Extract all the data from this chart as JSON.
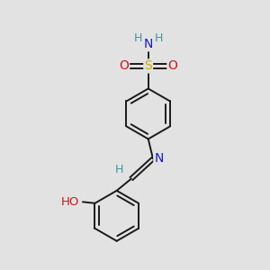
{
  "bg_color": "#e2e2e2",
  "bond_color": "#1a1a1a",
  "bond_width": 1.4,
  "dbo": 0.07,
  "ac": {
    "H": "#3a9a9a",
    "N": "#1818cc",
    "O": "#cc1818",
    "S": "#ccaa00"
  },
  "fs": 9.5
}
